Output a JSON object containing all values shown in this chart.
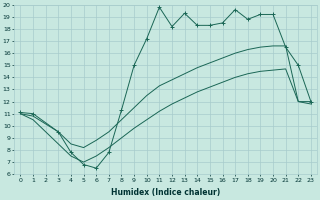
{
  "xlabel": "Humidex (Indice chaleur)",
  "bg_color": "#c8e8e0",
  "grid_color": "#a8cccc",
  "line_color": "#1a6655",
  "xlim": [
    -0.5,
    23.5
  ],
  "ylim": [
    6,
    20
  ],
  "yticks": [
    6,
    7,
    8,
    9,
    10,
    11,
    12,
    13,
    14,
    15,
    16,
    17,
    18,
    19,
    20
  ],
  "xticks": [
    0,
    1,
    2,
    3,
    4,
    5,
    6,
    7,
    8,
    9,
    10,
    11,
    12,
    13,
    14,
    15,
    16,
    17,
    18,
    19,
    20,
    21,
    22,
    23
  ],
  "line1_x": [
    0,
    1,
    3,
    4,
    5,
    6,
    7,
    8,
    9,
    10,
    11,
    12,
    13,
    14,
    15,
    16,
    17,
    18,
    19,
    20,
    21,
    22,
    23
  ],
  "line1_y": [
    11.1,
    11.0,
    9.5,
    7.8,
    6.8,
    6.5,
    7.8,
    11.3,
    15.0,
    17.2,
    19.8,
    18.2,
    19.3,
    18.3,
    18.3,
    18.5,
    19.6,
    18.8,
    19.2,
    19.2,
    16.5,
    15.0,
    12.0
  ],
  "line2_x": [
    0,
    1,
    3,
    4,
    5,
    6,
    7,
    8,
    9,
    10,
    11,
    12,
    13,
    14,
    15,
    16,
    17,
    18,
    19,
    20,
    21,
    22,
    23
  ],
  "line2_y": [
    11.0,
    10.8,
    9.5,
    8.5,
    8.2,
    8.8,
    9.5,
    10.5,
    11.5,
    12.5,
    13.3,
    13.8,
    14.3,
    14.8,
    15.2,
    15.6,
    16.0,
    16.3,
    16.5,
    16.6,
    16.6,
    12.0,
    12.0
  ],
  "line3_x": [
    0,
    1,
    3,
    4,
    5,
    6,
    7,
    8,
    9,
    10,
    11,
    12,
    13,
    14,
    15,
    16,
    17,
    18,
    19,
    20,
    21,
    22,
    23
  ],
  "line3_y": [
    11.0,
    10.5,
    8.5,
    7.5,
    7.0,
    7.5,
    8.2,
    9.0,
    9.8,
    10.5,
    11.2,
    11.8,
    12.3,
    12.8,
    13.2,
    13.6,
    14.0,
    14.3,
    14.5,
    14.6,
    14.7,
    12.0,
    11.8
  ]
}
